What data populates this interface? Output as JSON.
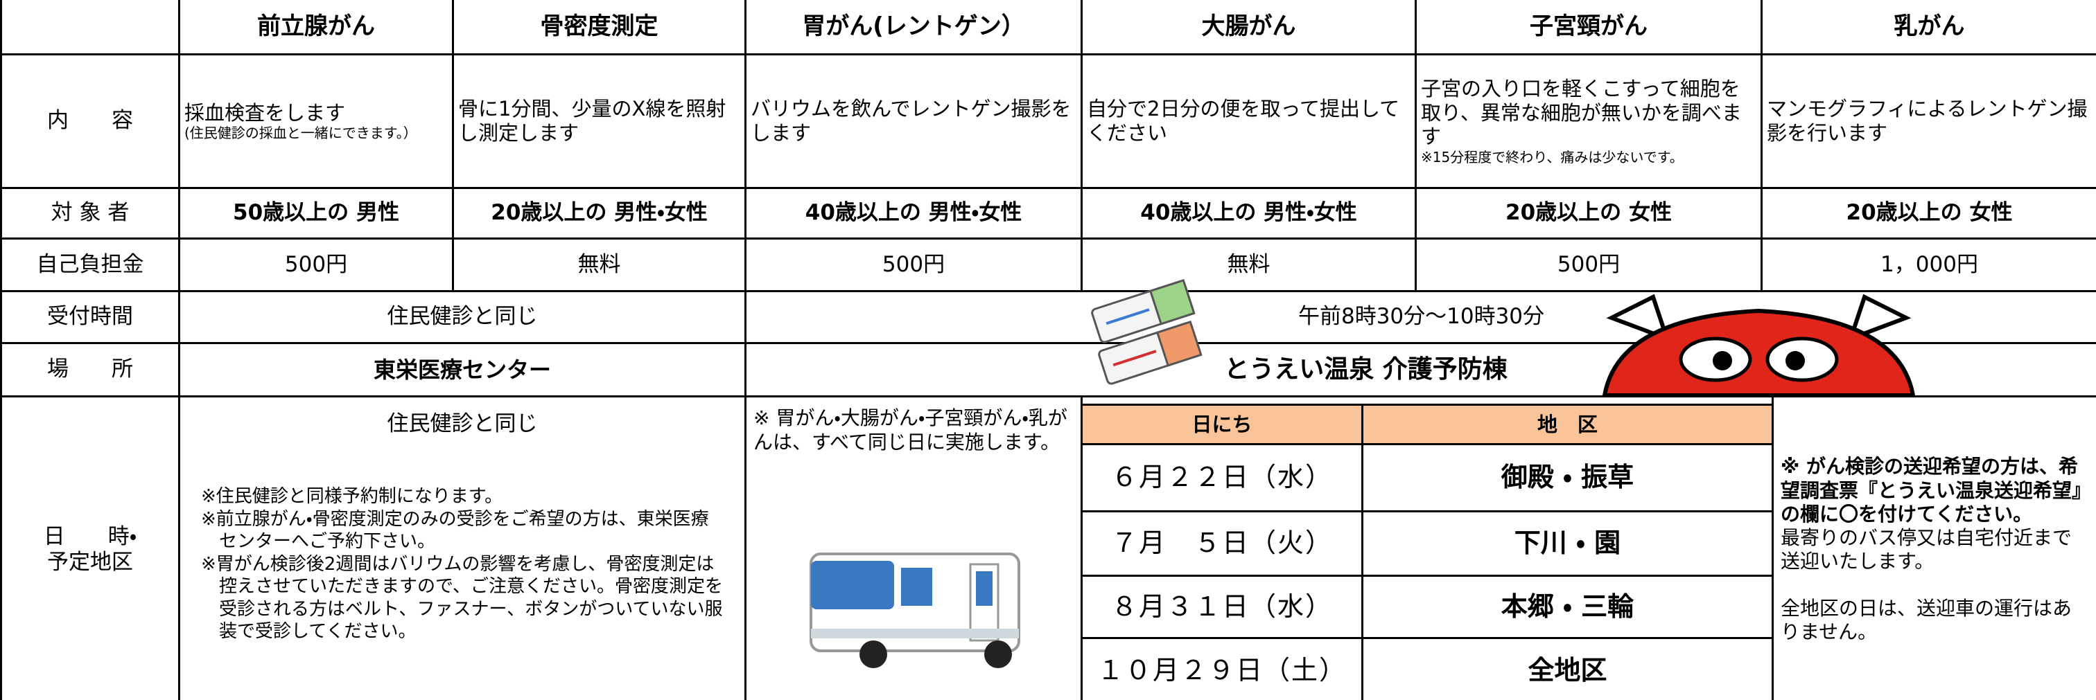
{
  "table": {
    "header": [
      "前立腺がん",
      "骨密度測定",
      "胃がん(レントゲン）",
      "大腸がん",
      "子宮頸がん",
      "乳がん"
    ],
    "content": {
      "label": "内　　容",
      "cells": [
        {
          "text": "採血検査をします",
          "note": "(住民健診の採血と一緒にできます。）"
        },
        {
          "text": "骨に1分間、少量のX線を照射し測定します"
        },
        {
          "text": "バリウムを飲んでレントゲン撮影をします"
        },
        {
          "text": "自分で2日分の便を取って提出してください"
        },
        {
          "text": "子宮の入り口を軽くこすって細胞を取り、異常な細胞が無いかを調べます",
          "note": "※15分程度で終わり、痛みは少ないです。"
        },
        {
          "text": "マンモグラフィによるレントゲン撮影を行います"
        }
      ]
    },
    "target": {
      "label": "対 象 者",
      "cells": [
        "50歳以上の 男性",
        "20歳以上の 男性・女性",
        "40歳以上の 男性・女性",
        "40歳以上の 男性・女性",
        "20歳以上の 女性",
        "20歳以上の 女性"
      ]
    },
    "fee": {
      "label": "自己負担金",
      "cells": [
        "500円",
        "無料",
        "500円",
        "無料",
        "500円",
        "1，000円"
      ]
    },
    "reception": {
      "label": "受付時間",
      "cells": [
        "住民健診と同じ",
        "午前8時30分～10時30分"
      ]
    },
    "place": {
      "label": "場　　所",
      "cells": [
        "東栄医療センター",
        "とうえい温泉 介護予防棟"
      ]
    },
    "schedule": {
      "label": [
        "日　　時・",
        "予定地区"
      ],
      "left_title": "住民健診と同じ",
      "left_notes": [
        "※住民健診と同様予約制になります。",
        "※前立腺がん・骨密度測定のみの受診をご希望の方は、東栄医療センターへご予約下さい。",
        "※胃がん検診後2週間はバリウムの影響を考慮し、骨密度測定は控えさせていただきますので、ご注意ください。骨密度測定を受診される方はベルト、ファスナー、ボタンがついていない服装で受診してください。"
      ],
      "middle_note": "※ 胃がん・大腸がん・子宮頸がん・乳がんは、すべて同じ日に実施します。",
      "dates_header": [
        "日にち",
        "地　区"
      ],
      "dates": [
        [
          "６月２２日（水）",
          "御殿 ・ 振草"
        ],
        [
          "７月　５日（火）",
          "下川 ・ 園"
        ],
        [
          "８月３１日（水）",
          "本郷 ・ 三輪"
        ],
        [
          "１０月２９日（土）",
          "全地区"
        ]
      ],
      "right_note": [
        "※ がん検診の送迎希望の方は、希望調査票『とうえい温泉送迎希望』の欄に〇を付けてください。",
        "最寄りのバス停又は自宅付近まで送迎いたします。",
        "全地区の日は、送迎車の運行はありません。"
      ]
    }
  }
}
